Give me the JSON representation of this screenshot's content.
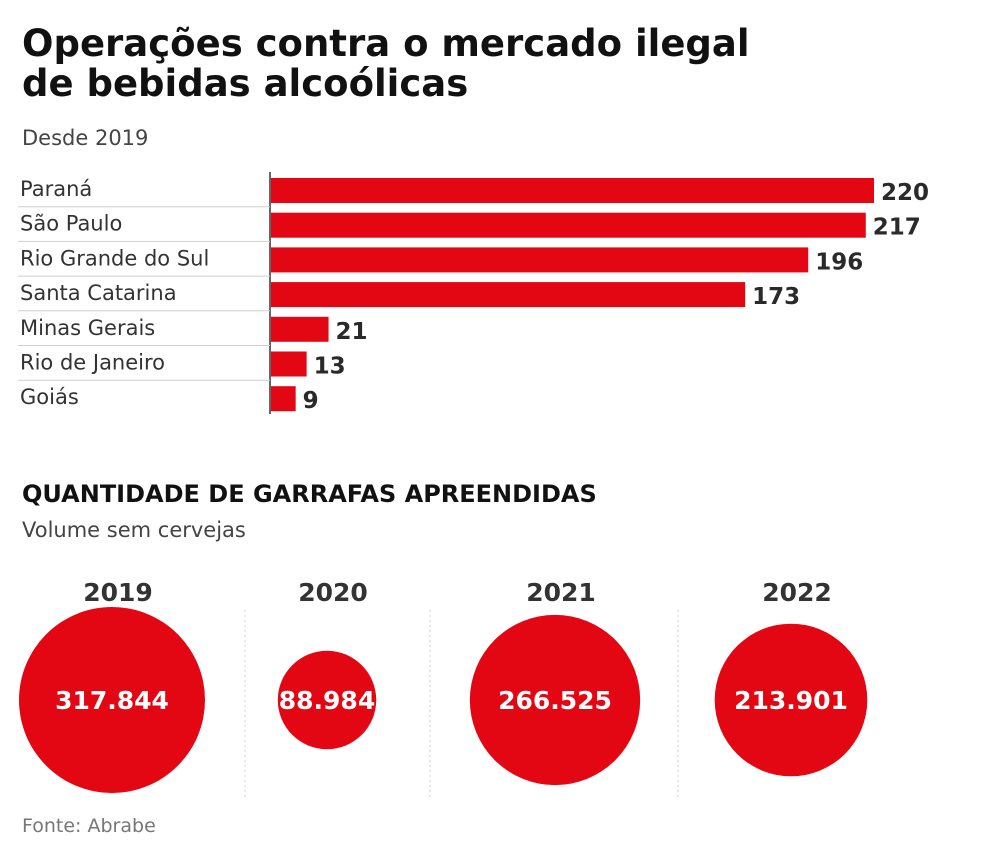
{
  "chart_data": [
    {
      "type": "bar",
      "orientation": "horizontal",
      "title_lines": [
        "Operações contra o mercado ilegal",
        "de bebidas alcoólicas"
      ],
      "subtitle": "Desde 2019",
      "categories": [
        "Paraná",
        "São Paulo",
        "Rio Grande do Sul",
        "Santa Catarina",
        "Minas Gerais",
        "Rio de Janeiro",
        "Goiás"
      ],
      "values": [
        220,
        217,
        196,
        173,
        21,
        13,
        9
      ],
      "value_labels": [
        "220",
        "217",
        "196",
        "173",
        "21",
        "13",
        "9"
      ],
      "xlim": [
        0,
        220
      ],
      "color": "#e30613",
      "grid": false
    },
    {
      "type": "bubble",
      "title": "QUANTIDADE DE GARRAFAS APREENDIDAS",
      "subtitle": "Volume sem cervejas",
      "categories": [
        "2019",
        "2020",
        "2021",
        "2022"
      ],
      "values": [
        317844,
        88984,
        266525,
        213901
      ],
      "value_labels": [
        "317.844",
        "88.984",
        "266.525",
        "213.901"
      ],
      "color": "#e30613"
    }
  ],
  "source": "Fonte: Abrabe"
}
